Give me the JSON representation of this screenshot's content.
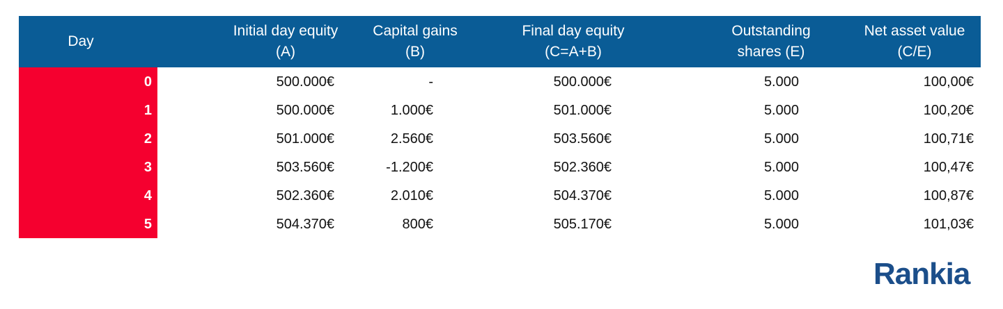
{
  "table": {
    "header": [
      [
        "Day"
      ],
      [
        "Initial day equity",
        "(A)"
      ],
      [
        "Capital gains",
        "(B)"
      ],
      [
        "Final day equity",
        "(C=A+B)"
      ],
      [
        "Outstanding",
        "shares (E)"
      ],
      [
        "Net asset value",
        "(C/E)"
      ]
    ],
    "rows": [
      [
        "0",
        "500.000€",
        "-",
        "500.000€",
        "5.000",
        "100,00€"
      ],
      [
        "1",
        "500.000€",
        "1.000€",
        "501.000€",
        "5.000",
        "100,20€"
      ],
      [
        "2",
        "501.000€",
        "2.560€",
        "503.560€",
        "5.000",
        "100,71€"
      ],
      [
        "3",
        "503.560€",
        "-1.200€",
        "502.360€",
        "5.000",
        "100,47€"
      ],
      [
        "4",
        "502.360€",
        "2.010€",
        "504.370€",
        "5.000",
        "100,87€"
      ],
      [
        "5",
        "504.370€",
        "800€",
        "505.170€",
        "5.000",
        "101,03€"
      ]
    ]
  },
  "logo": "Rankia"
}
